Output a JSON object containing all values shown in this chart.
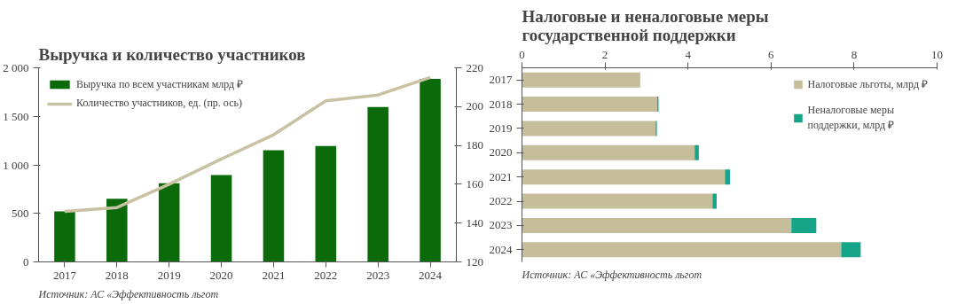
{
  "chart_data": [
    {
      "type": "bar",
      "title": "Выручка и количество участников",
      "categories": [
        "2017",
        "2018",
        "2019",
        "2020",
        "2021",
        "2022",
        "2023",
        "2024"
      ],
      "series": [
        {
          "name": "Выручка по всем участникам млрд ₽",
          "color": "#0b6b0b",
          "values": [
            520,
            650,
            810,
            895,
            1150,
            1195,
            1595,
            1885
          ]
        },
        {
          "name": "Количество участников, ед. (пр. ось)",
          "type": "line",
          "axis": "y2",
          "color": "#c8c2a2",
          "values": [
            146,
            148,
            160,
            173,
            185.5,
            203,
            206,
            215
          ]
        }
      ],
      "ylim": [
        0,
        2000
      ],
      "yticks": [
        0,
        {
          "value": 500,
          "label": "500"
        },
        {
          "value": 1000,
          "label": "1 000"
        },
        {
          "value": 1500,
          "label": "1 500"
        },
        {
          "value": 2000,
          "label": "2 000"
        }
      ],
      "y2lim": [
        120,
        220
      ],
      "y2ticks": [
        120,
        140,
        160,
        180,
        200,
        220
      ],
      "grid": false,
      "legend": "top left",
      "annotations": [
        "Источник: АС «Эффективность льгот"
      ]
    },
    {
      "type": "bar",
      "orientation": "horizontal",
      "stacked": true,
      "title": "Налоговые и неналоговые меры государственной поддержки",
      "categories": [
        "2017",
        "2018",
        "2019",
        "2020",
        "2021",
        "2022",
        "2023",
        "2024"
      ],
      "series": [
        {
          "name": "Налоговые льготы, млрд ₽",
          "color": "#c6bd9a",
          "values": [
            2.85,
            3.26,
            3.22,
            4.16,
            4.89,
            4.59,
            6.49,
            7.69
          ]
        },
        {
          "name": "Неналоговые меры поддержки, млрд ₽",
          "color": "#17a589",
          "values": [
            0,
            0.03,
            0.03,
            0.1,
            0.12,
            0.1,
            0.6,
            0.47
          ]
        }
      ],
      "xlim": [
        0,
        10
      ],
      "xticks": [
        0,
        2,
        4,
        6,
        8,
        10
      ],
      "grid": false,
      "legend": "top right",
      "annotations": [
        "Источник: АС «Эффективность льгот"
      ]
    }
  ]
}
